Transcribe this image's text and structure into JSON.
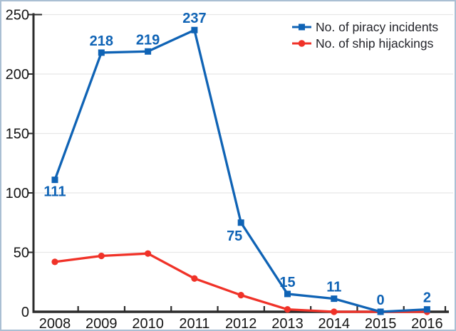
{
  "chart_data": {
    "type": "line",
    "title": "",
    "xlabel": "",
    "ylabel": "",
    "categories": [
      "2008",
      "2009",
      "2010",
      "2011",
      "2012",
      "2013",
      "2014",
      "2015",
      "2016"
    ],
    "series": [
      {
        "name": "No. of piracy incidents",
        "color": "#0f63b5",
        "marker": "square",
        "values": [
          111,
          218,
          219,
          237,
          75,
          15,
          11,
          0,
          2
        ],
        "point_labels": [
          "111",
          "218",
          "219",
          "237",
          "75",
          "15",
          "11",
          "0",
          "2"
        ],
        "label_placement": {
          "0": "below",
          "4": "below-left"
        }
      },
      {
        "name": "No. of ship hijackings",
        "color": "#f03228",
        "marker": "circle",
        "values": [
          42,
          47,
          49,
          28,
          14,
          2,
          0,
          0,
          0
        ],
        "point_labels": []
      }
    ],
    "ylim": [
      0,
      250
    ],
    "yticks": [
      0,
      50,
      100,
      150,
      200,
      250
    ],
    "grid": "horizontal",
    "gridline_color": "#e7e7e7",
    "axis_color": "#2b2b2b",
    "tick_label_color": "#141414",
    "legend_position": "top-right",
    "frame_border_color": "#aabfd3"
  }
}
